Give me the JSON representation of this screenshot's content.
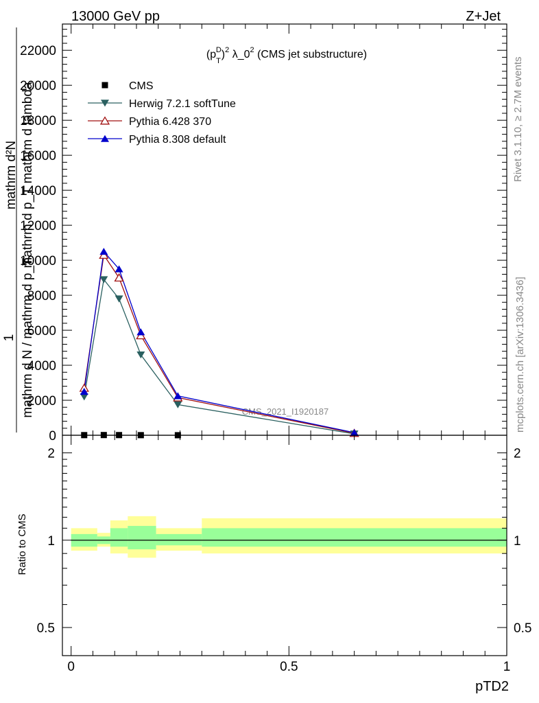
{
  "header": {
    "energy_label": "13000 GeV pp",
    "process_label": "Z+Jet"
  },
  "side_labels": {
    "rivet": "Rivet 3.1.10, ≥ 2.7M events",
    "mcplots": "mcplots.cern.ch [arXiv:1306.3436]"
  },
  "watermark": "CMS_2021_I1920187",
  "chart_data": [
    {
      "type": "line",
      "title_parts": {
        "pre": "(p",
        "sub": "T",
        "sup": "D",
        "post_sup": ")",
        "sup2": "2",
        "mid": " λ_0",
        "sup3": "2",
        "tail": " (CMS jet substructure)"
      },
      "ylabel_top": "mathrm d²N",
      "ylabel_bottom": "mathrm d p_T mathrm d lambda",
      "ylabel_one": "1",
      "ylabel_den": "mathrm d N / mathrm d p_T",
      "xlim": [
        -0.02,
        1.0
      ],
      "ylim": [
        0,
        23500
      ],
      "yticks": [
        0,
        2000,
        4000,
        6000,
        8000,
        10000,
        12000,
        14000,
        16000,
        18000,
        20000,
        22000
      ],
      "ytick_labels": [
        "0",
        "2000",
        "4000",
        "6000",
        "8000",
        "10000",
        "12000",
        "14000",
        "16000",
        "18000",
        "20000",
        "22000"
      ],
      "legend_position": "top-left",
      "series": [
        {
          "name": "CMS",
          "color": "#000000",
          "marker": "square",
          "x": [
            0.03,
            0.075,
            0.11,
            0.16,
            0.245
          ],
          "y": [
            8,
            12,
            10,
            6,
            3
          ]
        },
        {
          "name": "Herwig 7.2.1 softTune",
          "color": "#2a6060",
          "marker": "triangle-down",
          "x": [
            0.03,
            0.075,
            0.11,
            0.16,
            0.245,
            0.65
          ],
          "y": [
            2200,
            8900,
            7800,
            4600,
            1750,
            80
          ]
        },
        {
          "name": "Pythia 6.428 370",
          "color": "#a01010",
          "marker": "triangle-up-open",
          "x": [
            0.03,
            0.075,
            0.11,
            0.16,
            0.245,
            0.65
          ],
          "y": [
            2700,
            10300,
            9000,
            5700,
            2150,
            120
          ]
        },
        {
          "name": "Pythia 8.308 default",
          "color": "#0000cc",
          "marker": "triangle-up",
          "x": [
            0.03,
            0.075,
            0.11,
            0.16,
            0.245,
            0.65
          ],
          "y": [
            2500,
            10500,
            9500,
            5900,
            2250,
            150
          ]
        }
      ]
    },
    {
      "type": "area",
      "ylabel": "Ratio to CMS",
      "xlabel": "pTD2",
      "xlim": [
        -0.02,
        1.0
      ],
      "ylim": [
        0.4,
        2.3
      ],
      "xticks": [
        0,
        0.5,
        1
      ],
      "xtick_labels": [
        "0",
        "0.5",
        "1"
      ],
      "yticks": [
        0.5,
        1,
        2
      ],
      "ytick_labels": [
        "0.5",
        "1",
        "2"
      ],
      "reference_value": 1,
      "bands": [
        {
          "x0": 0.0,
          "x1": 0.06,
          "green": [
            0.95,
            1.05
          ],
          "yellow": [
            0.92,
            1.1
          ]
        },
        {
          "x0": 0.06,
          "x1": 0.09,
          "green": [
            0.97,
            1.03
          ],
          "yellow": [
            0.95,
            1.06
          ]
        },
        {
          "x0": 0.09,
          "x1": 0.13,
          "green": [
            0.95,
            1.1
          ],
          "yellow": [
            0.9,
            1.17
          ]
        },
        {
          "x0": 0.13,
          "x1": 0.195,
          "green": [
            0.93,
            1.12
          ],
          "yellow": [
            0.87,
            1.21
          ]
        },
        {
          "x0": 0.195,
          "x1": 0.3,
          "green": [
            0.96,
            1.05
          ],
          "yellow": [
            0.92,
            1.1
          ]
        },
        {
          "x0": 0.3,
          "x1": 1.0,
          "green": [
            0.95,
            1.1
          ],
          "yellow": [
            0.9,
            1.19
          ]
        }
      ],
      "band_colors": {
        "green": "#99ff99",
        "yellow": "#ffff99"
      }
    }
  ]
}
